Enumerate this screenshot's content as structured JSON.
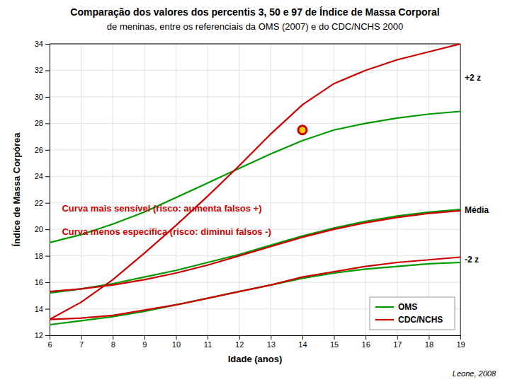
{
  "chart_data": {
    "type": "line",
    "title": "Comparação dos valores dos percentis 3, 50 e 97 de Índice de Massa Corporal",
    "subtitle": "de meninas, entre os referenciais da OMS (2007) e do CDC/NCHS 2000",
    "x_label": "Idade (anos)",
    "y_label": "Índice de Massa Corpórea",
    "caption": "Leone, 2008",
    "xlim": [
      6,
      19
    ],
    "ylim": [
      12,
      34
    ],
    "xticks": [
      6,
      7,
      8,
      9,
      10,
      11,
      12,
      13,
      14,
      15,
      16,
      17,
      18,
      19
    ],
    "yticks": [
      12,
      14,
      16,
      18,
      20,
      22,
      24,
      26,
      28,
      30,
      32,
      34
    ],
    "grid": true,
    "legend": "lower right",
    "x": [
      6,
      7,
      8,
      9,
      10,
      11,
      12,
      13,
      14,
      15,
      16,
      17,
      18,
      19
    ],
    "series": [
      {
        "name": "OMS",
        "color": "#009900",
        "values": [
          12.8,
          13.1,
          13.4,
          13.8,
          14.3,
          14.8,
          15.3,
          15.8,
          16.3,
          16.7,
          17.0,
          17.2,
          17.4,
          17.5
        ]
      },
      {
        "name": "OMS",
        "color": "#009900",
        "values": [
          15.2,
          15.5,
          15.9,
          16.4,
          16.9,
          17.5,
          18.1,
          18.8,
          19.5,
          20.1,
          20.6,
          21.0,
          21.3,
          21.5
        ]
      },
      {
        "name": "OMS",
        "color": "#009900",
        "values": [
          19.0,
          19.6,
          20.4,
          21.3,
          22.4,
          23.5,
          24.6,
          25.7,
          26.7,
          27.5,
          28.0,
          28.4,
          28.7,
          28.9
        ]
      },
      {
        "name": "CDC/NCHS",
        "color": "#cc0000",
        "values": [
          13.2,
          13.3,
          13.5,
          13.9,
          14.3,
          14.8,
          15.3,
          15.8,
          16.4,
          16.8,
          17.2,
          17.5,
          17.7,
          17.9
        ]
      },
      {
        "name": "CDC/NCHS",
        "color": "#cc0000",
        "values": [
          15.3,
          15.5,
          15.8,
          16.2,
          16.7,
          17.3,
          18.0,
          18.7,
          19.4,
          20.0,
          20.5,
          20.9,
          21.2,
          21.4
        ]
      },
      {
        "name": "CDC/NCHS",
        "color": "#cc0000",
        "values": [
          13.2,
          14.5,
          16.2,
          18.2,
          20.3,
          22.5,
          24.8,
          27.2,
          29.4,
          31.0,
          32.0,
          32.8,
          33.4,
          34.0
        ]
      },
      {
        "type": "scatter",
        "marker": "circle",
        "color": "#cc0000",
        "colors": [
          "#ffcc00"
        ],
        "x": [
          14
        ],
        "values": [
          27.5
        ]
      }
    ],
    "annotations": [
      {
        "text": "Curva mais sensível (risco: aumenta falsos +)",
        "color": "#cc0000"
      },
      {
        "text": "Curva menos específica (risco: diminui falsos -)",
        "color": "#cc0000"
      },
      {
        "text": "+2 z",
        "y": 31.45
      },
      {
        "text": "Média",
        "y": 21.45
      },
      {
        "text": "-2 z",
        "y": 17.7
      }
    ]
  }
}
